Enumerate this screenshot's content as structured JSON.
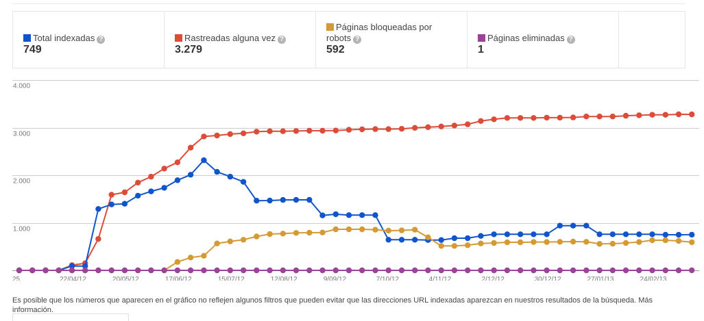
{
  "stats": [
    {
      "label": "Total indexadas",
      "value": "749",
      "color": "#1155cc",
      "help": "?"
    },
    {
      "label": "Rastreadas alguna vez",
      "value": "3.279",
      "color": "#dd4b39",
      "help": "?"
    },
    {
      "label": "Páginas bloqueadas por robots",
      "value": "592",
      "color": "#d49a35",
      "help": "?"
    },
    {
      "label": "Páginas eliminadas",
      "value": "1",
      "color": "#994499",
      "help": "?"
    }
  ],
  "footnote": {
    "text": "Es posible que los números que aparecen en el gráfico no reflejen algunos filtros que pueden evitar que las direcciones URL indexadas aparezcan en nuestros resultados de la búsqueda.",
    "link": "Más información."
  },
  "chart_data": {
    "type": "line",
    "title": "",
    "xlabel": "",
    "ylabel": "",
    "ylim": [
      0,
      4000
    ],
    "yticks": [
      0,
      1000,
      2000,
      3000,
      4000
    ],
    "ytick_labels": [
      "",
      "1.000",
      "2.000",
      "3.000",
      "4.000"
    ],
    "grid": true,
    "legend": "top (summary boxes)",
    "x_tick_labels": [
      {
        "index": 0,
        "label": "25..."
      },
      {
        "index": 4,
        "label": "22/04/12"
      },
      {
        "index": 8,
        "label": "20/05/12"
      },
      {
        "index": 12,
        "label": "17/06/12"
      },
      {
        "index": 16,
        "label": "15/07/12"
      },
      {
        "index": 20,
        "label": "12/08/12"
      },
      {
        "index": 24,
        "label": "9/09/12"
      },
      {
        "index": 28,
        "label": "7/10/12"
      },
      {
        "index": 32,
        "label": "4/11/12"
      },
      {
        "index": 36,
        "label": "2/12/12"
      },
      {
        "index": 40,
        "label": "30/12/12"
      },
      {
        "index": 44,
        "label": "27/01/13"
      },
      {
        "index": 48,
        "label": "24/02/13"
      }
    ],
    "point_count": 52,
    "series": [
      {
        "name": "Rastreadas alguna vez",
        "color": "#dd4b39",
        "values": [
          0,
          0,
          0,
          0,
          110,
          150,
          660,
          1590,
          1640,
          1845,
          1970,
          2140,
          2270,
          2580,
          2815,
          2835,
          2865,
          2880,
          2915,
          2925,
          2925,
          2930,
          2935,
          2935,
          2940,
          2955,
          2965,
          2970,
          2970,
          2975,
          2995,
          3010,
          3025,
          3045,
          3070,
          3140,
          3175,
          3205,
          3205,
          3205,
          3210,
          3210,
          3215,
          3235,
          3235,
          3235,
          3250,
          3260,
          3270,
          3270,
          3280,
          3279
        ]
      },
      {
        "name": "Total indexadas",
        "color": "#1155cc",
        "values": [
          0,
          0,
          0,
          0,
          90,
          90,
          1290,
          1385,
          1400,
          1570,
          1660,
          1735,
          1895,
          2010,
          2315,
          2070,
          1970,
          1860,
          1465,
          1468,
          1480,
          1482,
          1482,
          1156,
          1180,
          1161,
          1161,
          1161,
          643,
          643,
          643,
          638,
          638,
          676,
          676,
          724,
          758,
          758,
          758,
          758,
          758,
          940,
          940,
          940,
          758,
          758,
          758,
          758,
          758,
          748,
          748,
          749
        ]
      },
      {
        "name": "Páginas bloqueadas por robots",
        "color": "#d49a35",
        "values": [
          0,
          0,
          0,
          0,
          0,
          0,
          0,
          0,
          0,
          0,
          0,
          0,
          177,
          269,
          307,
          566,
          609,
          643,
          712,
          763,
          772,
          787,
          791,
          796,
          863,
          863,
          863,
          854,
          835,
          840,
          854,
          695,
          513,
          513,
          528,
          566,
          576,
          590,
          590,
          595,
          595,
          600,
          604,
          600,
          557,
          560,
          576,
          595,
          633,
          633,
          619,
          592
        ]
      },
      {
        "name": "Páginas eliminadas",
        "color": "#994499",
        "values": [
          0,
          0,
          0,
          0,
          0,
          0,
          0,
          0,
          0,
          0,
          0,
          0,
          0,
          0,
          0,
          0,
          0,
          0,
          0,
          0,
          0,
          0,
          0,
          0,
          0,
          0,
          0,
          0,
          0,
          0,
          0,
          0,
          0,
          0,
          0,
          0,
          0,
          0,
          0,
          0,
          0,
          0,
          0,
          0,
          0,
          0,
          0,
          0,
          0,
          0,
          0,
          1
        ]
      }
    ]
  }
}
